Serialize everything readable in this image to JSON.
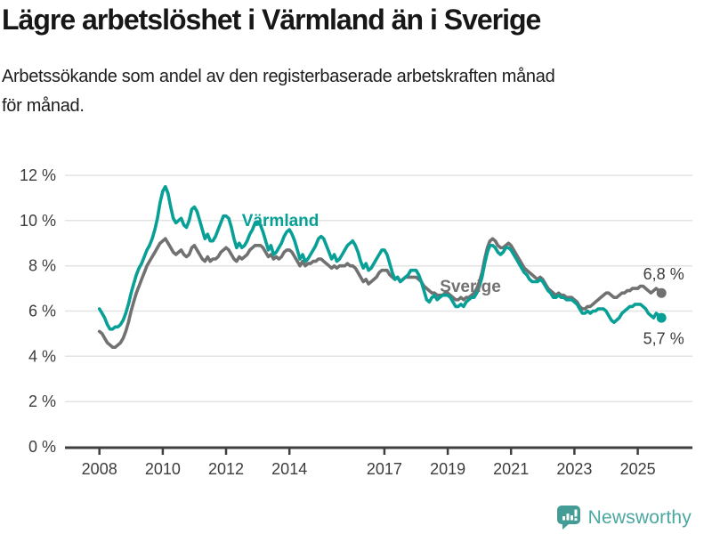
{
  "header": {
    "title": "Lägre arbetslöshet i Värmland än i Sverige",
    "subtitle": "Arbetssökande som andel av den registerbaserade arbetskraften månad\nför månad."
  },
  "footer": {
    "brand": "Newsworthy"
  },
  "colors": {
    "varmland": "#08A096",
    "sverige": "#717171",
    "label": "#3d3d3d",
    "axis": "#3f3f3f",
    "grid": "#e3e3e3",
    "brand": "#4BA7A1",
    "brand_icon": "#459C96"
  },
  "chart_data": {
    "type": "line",
    "title": "",
    "xlabel": "",
    "ylabel": "",
    "ylim": [
      0,
      12
    ],
    "y_tick_step": 2,
    "y_tick_labels": [
      "0 %",
      "2 %",
      "4 %",
      "6 %",
      "8 %",
      "10 %",
      "12 %"
    ],
    "x_tick_years": [
      2008,
      2010,
      2012,
      2014,
      2017,
      2019,
      2021,
      2023,
      2025
    ],
    "x_start": 2008.0,
    "x_step_years": 0.0833333,
    "x_end": 2025.75,
    "grid": "horizontal",
    "legend": "inline-labels",
    "series": [
      {
        "name": "Värmland",
        "color_key": "varmland",
        "values": [
          6.1,
          5.9,
          5.7,
          5.4,
          5.2,
          5.2,
          5.3,
          5.3,
          5.4,
          5.6,
          5.9,
          6.3,
          6.8,
          7.2,
          7.6,
          7.9,
          8.1,
          8.4,
          8.7,
          8.9,
          9.2,
          9.6,
          10.1,
          10.8,
          11.3,
          11.5,
          11.2,
          10.6,
          10.1,
          9.9,
          10.0,
          10.1,
          9.8,
          9.7,
          10.0,
          10.5,
          10.6,
          10.4,
          10.0,
          9.6,
          9.2,
          9.4,
          9.1,
          9.1,
          9.3,
          9.6,
          9.9,
          10.2,
          10.2,
          10.1,
          9.7,
          9.2,
          8.8,
          9.0,
          8.8,
          8.9,
          9.1,
          9.4,
          9.6,
          9.9,
          9.9,
          9.8,
          9.5,
          9.1,
          8.7,
          8.9,
          8.5,
          8.6,
          8.8,
          9.0,
          9.3,
          9.5,
          9.6,
          9.4,
          9.1,
          8.7,
          8.3,
          8.5,
          8.2,
          8.3,
          8.5,
          8.7,
          8.9,
          9.2,
          9.3,
          9.2,
          8.9,
          8.6,
          8.3,
          8.5,
          8.2,
          8.3,
          8.5,
          8.7,
          8.9,
          9.0,
          9.1,
          8.9,
          8.6,
          8.2,
          7.9,
          8.1,
          7.8,
          7.9,
          8.1,
          8.3,
          8.5,
          8.7,
          8.7,
          8.5,
          8.1,
          7.7,
          7.4,
          7.5,
          7.3,
          7.4,
          7.5,
          7.6,
          7.8,
          7.8,
          7.8,
          7.6,
          7.3,
          6.9,
          6.5,
          6.4,
          6.6,
          6.7,
          6.5,
          6.6,
          6.7,
          6.7,
          6.7,
          6.6,
          6.4,
          6.2,
          6.2,
          6.3,
          6.2,
          6.4,
          6.5,
          6.6,
          6.6,
          6.8,
          7.1,
          7.5,
          8.1,
          8.6,
          8.9,
          8.9,
          8.8,
          8.6,
          8.5,
          8.6,
          8.8,
          8.8,
          8.7,
          8.5,
          8.3,
          8.1,
          7.9,
          7.7,
          7.6,
          7.4,
          7.3,
          7.3,
          7.3,
          7.4,
          7.3,
          7.1,
          6.9,
          6.8,
          6.6,
          6.6,
          6.7,
          6.6,
          6.6,
          6.5,
          6.5,
          6.5,
          6.4,
          6.3,
          6.1,
          5.9,
          5.9,
          6.0,
          5.9,
          6.0,
          6.0,
          6.1,
          6.1,
          6.1,
          6.0,
          5.8,
          5.6,
          5.5,
          5.6,
          5.7,
          5.9,
          6.0,
          6.1,
          6.2,
          6.2,
          6.3,
          6.3,
          6.3,
          6.2,
          6.1,
          5.9,
          5.8,
          5.7,
          5.9,
          5.8,
          5.7
        ]
      },
      {
        "name": "Sverige",
        "color_key": "sverige",
        "values": [
          5.1,
          5.0,
          4.8,
          4.6,
          4.5,
          4.4,
          4.4,
          4.5,
          4.6,
          4.8,
          5.1,
          5.5,
          6.0,
          6.4,
          6.8,
          7.1,
          7.4,
          7.7,
          8.0,
          8.2,
          8.4,
          8.6,
          8.8,
          9.0,
          9.1,
          9.2,
          9.0,
          8.8,
          8.6,
          8.5,
          8.6,
          8.7,
          8.5,
          8.4,
          8.5,
          8.8,
          8.9,
          8.7,
          8.5,
          8.3,
          8.2,
          8.4,
          8.2,
          8.3,
          8.3,
          8.4,
          8.6,
          8.7,
          8.8,
          8.7,
          8.5,
          8.3,
          8.2,
          8.4,
          8.3,
          8.4,
          8.5,
          8.7,
          8.8,
          8.9,
          8.9,
          8.9,
          8.8,
          8.6,
          8.4,
          8.5,
          8.3,
          8.4,
          8.3,
          8.4,
          8.6,
          8.7,
          8.7,
          8.6,
          8.4,
          8.2,
          8.0,
          8.2,
          8.0,
          8.1,
          8.1,
          8.2,
          8.2,
          8.3,
          8.3,
          8.2,
          8.1,
          8.0,
          7.9,
          8.0,
          7.9,
          8.0,
          8.0,
          8.0,
          8.1,
          8.0,
          8.0,
          7.9,
          7.7,
          7.5,
          7.3,
          7.4,
          7.2,
          7.3,
          7.4,
          7.5,
          7.7,
          7.8,
          7.8,
          7.8,
          7.6,
          7.5,
          7.4,
          7.5,
          7.3,
          7.4,
          7.5,
          7.5,
          7.5,
          7.5,
          7.5,
          7.4,
          7.3,
          7.1,
          7.0,
          6.9,
          6.8,
          6.8,
          6.7,
          6.7,
          6.7,
          6.8,
          6.8,
          6.7,
          6.6,
          6.5,
          6.5,
          6.6,
          6.5,
          6.6,
          6.6,
          6.7,
          6.8,
          7.0,
          7.3,
          7.7,
          8.3,
          8.8,
          9.1,
          9.2,
          9.1,
          8.9,
          8.8,
          8.8,
          8.9,
          9.0,
          8.9,
          8.7,
          8.5,
          8.3,
          8.1,
          7.9,
          7.8,
          7.7,
          7.6,
          7.5,
          7.4,
          7.5,
          7.4,
          7.2,
          7.0,
          6.9,
          6.8,
          6.7,
          6.8,
          6.7,
          6.7,
          6.6,
          6.6,
          6.6,
          6.5,
          6.4,
          6.2,
          6.1,
          6.1,
          6.2,
          6.2,
          6.3,
          6.4,
          6.5,
          6.6,
          6.7,
          6.8,
          6.8,
          6.7,
          6.6,
          6.6,
          6.7,
          6.8,
          6.8,
          6.9,
          6.9,
          7.0,
          7.0,
          7.0,
          7.1,
          7.1,
          7.0,
          6.9,
          6.8,
          6.9,
          7.0,
          6.9,
          6.8
        ]
      }
    ],
    "annotations": [
      {
        "text": "Värmland",
        "x_year": 2012.5,
        "y_value": 9.75,
        "color_key": "varmland",
        "weight": 700,
        "size": 19,
        "anchor": "start"
      },
      {
        "text": "Sverige",
        "x_year": 2018.75,
        "y_value": 6.85,
        "color_key": "sverige",
        "weight": 700,
        "size": 19,
        "anchor": "start"
      },
      {
        "text": "6,8 %",
        "x_year": 2025.82,
        "y_value": 7.4,
        "color_key": "label",
        "weight": 400,
        "size": 18,
        "anchor": "middle"
      },
      {
        "text": "5,7 %",
        "x_year": 2025.82,
        "y_value": 4.55,
        "color_key": "label",
        "weight": 400,
        "size": 18,
        "anchor": "middle"
      }
    ]
  }
}
